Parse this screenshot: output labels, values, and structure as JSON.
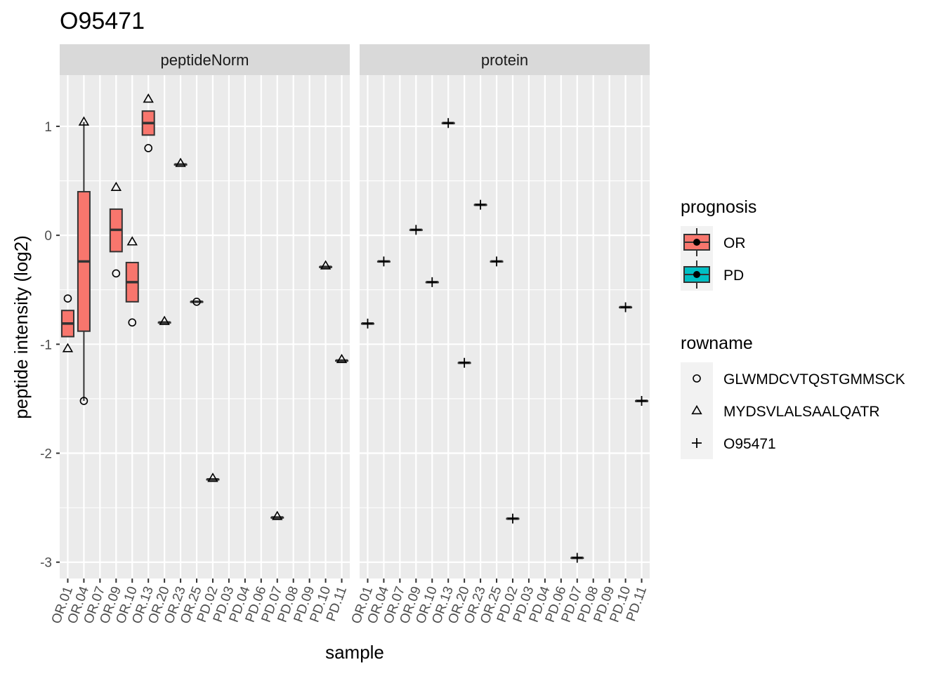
{
  "chart_data": {
    "type": "box",
    "title": "O95471",
    "xlabel": "sample",
    "ylabel": "peptide intensity (log2)",
    "ylim": [
      -3.15,
      1.47
    ],
    "yticks": [
      -3,
      -2,
      -1,
      0,
      1
    ],
    "grid": true,
    "legend_position": "right",
    "categories": [
      "OR.01",
      "OR.04",
      "OR.07",
      "OR.09",
      "OR.10",
      "OR.13",
      "OR.20",
      "OR.23",
      "OR.25",
      "PD.02",
      "PD.03",
      "PD.04",
      "PD.06",
      "PD.07",
      "PD.08",
      "PD.09",
      "PD.10",
      "PD.11"
    ],
    "facets": [
      {
        "label": "peptideNorm",
        "boxes": [
          {
            "sample": "OR.01",
            "prognosis": "OR",
            "q1": -0.93,
            "median": -0.81,
            "q3": -0.69,
            "whisker_low": -0.93,
            "whisker_high": -0.69
          },
          {
            "sample": "OR.04",
            "prognosis": "OR",
            "q1": -0.88,
            "median": -0.24,
            "q3": 0.4,
            "whisker_low": -1.52,
            "whisker_high": 1.04
          },
          {
            "sample": "OR.09",
            "prognosis": "OR",
            "q1": -0.15,
            "median": 0.05,
            "q3": 0.24,
            "whisker_low": -0.15,
            "whisker_high": 0.24
          },
          {
            "sample": "OR.10",
            "prognosis": "OR",
            "q1": -0.61,
            "median": -0.43,
            "q3": -0.25,
            "whisker_low": -0.61,
            "whisker_high": -0.25
          },
          {
            "sample": "OR.13",
            "prognosis": "OR",
            "q1": 0.92,
            "median": 1.03,
            "q3": 1.14,
            "whisker_low": 0.92,
            "whisker_high": 1.14
          },
          {
            "sample": "OR.20",
            "prognosis": "OR",
            "q1": -0.8,
            "median": -0.8,
            "q3": -0.8,
            "whisker_low": -0.8,
            "whisker_high": -0.8
          },
          {
            "sample": "OR.23",
            "prognosis": "OR",
            "q1": 0.65,
            "median": 0.65,
            "q3": 0.65,
            "whisker_low": 0.65,
            "whisker_high": 0.65
          },
          {
            "sample": "OR.25",
            "prognosis": "OR",
            "q1": -0.61,
            "median": -0.61,
            "q3": -0.61,
            "whisker_low": -0.61,
            "whisker_high": -0.61
          },
          {
            "sample": "PD.02",
            "prognosis": "OR",
            "q1": -2.24,
            "median": -2.24,
            "q3": -2.24,
            "whisker_low": -2.24,
            "whisker_high": -2.24
          },
          {
            "sample": "PD.07",
            "prognosis": "OR",
            "q1": -2.59,
            "median": -2.59,
            "q3": -2.59,
            "whisker_low": -2.59,
            "whisker_high": -2.59
          },
          {
            "sample": "PD.10",
            "prognosis": "OR",
            "q1": -0.29,
            "median": -0.29,
            "q3": -0.29,
            "whisker_low": -0.29,
            "whisker_high": -0.29
          },
          {
            "sample": "PD.11",
            "prognosis": "OR",
            "q1": -1.15,
            "median": -1.15,
            "q3": -1.15,
            "whisker_low": -1.15,
            "whisker_high": -1.15
          }
        ],
        "points": [
          {
            "sample": "OR.01",
            "rowname": "GLWMDCVTQSTGMMSCK",
            "y": -0.58
          },
          {
            "sample": "OR.01",
            "rowname": "MYDSVLALSAALQATR",
            "y": -1.04
          },
          {
            "sample": "OR.04",
            "rowname": "GLWMDCVTQSTGMMSCK",
            "y": -1.52
          },
          {
            "sample": "OR.04",
            "rowname": "MYDSVLALSAALQATR",
            "y": 1.04
          },
          {
            "sample": "OR.09",
            "rowname": "GLWMDCVTQSTGMMSCK",
            "y": -0.35
          },
          {
            "sample": "OR.09",
            "rowname": "MYDSVLALSAALQATR",
            "y": 0.44
          },
          {
            "sample": "OR.10",
            "rowname": "GLWMDCVTQSTGMMSCK",
            "y": -0.8
          },
          {
            "sample": "OR.10",
            "rowname": "MYDSVLALSAALQATR",
            "y": -0.06
          },
          {
            "sample": "OR.13",
            "rowname": "GLWMDCVTQSTGMMSCK",
            "y": 0.8
          },
          {
            "sample": "OR.13",
            "rowname": "MYDSVLALSAALQATR",
            "y": 1.25
          },
          {
            "sample": "OR.20",
            "rowname": "MYDSVLALSAALQATR",
            "y": -0.79
          },
          {
            "sample": "OR.23",
            "rowname": "MYDSVLALSAALQATR",
            "y": 0.66
          },
          {
            "sample": "OR.25",
            "rowname": "GLWMDCVTQSTGMMSCK",
            "y": -0.61
          },
          {
            "sample": "PD.02",
            "rowname": "MYDSVLALSAALQATR",
            "y": -2.23
          },
          {
            "sample": "PD.07",
            "rowname": "MYDSVLALSAALQATR",
            "y": -2.58
          },
          {
            "sample": "PD.10",
            "rowname": "MYDSVLALSAALQATR",
            "y": -0.28
          },
          {
            "sample": "PD.11",
            "rowname": "MYDSVLALSAALQATR",
            "y": -1.14
          }
        ]
      },
      {
        "label": "protein",
        "boxes": [
          {
            "sample": "OR.01",
            "prognosis": "OR",
            "q1": -0.81,
            "median": -0.81,
            "q3": -0.81,
            "whisker_low": -0.81,
            "whisker_high": -0.81
          },
          {
            "sample": "OR.04",
            "prognosis": "OR",
            "q1": -0.24,
            "median": -0.24,
            "q3": -0.24,
            "whisker_low": -0.24,
            "whisker_high": -0.24
          },
          {
            "sample": "OR.09",
            "prognosis": "OR",
            "q1": 0.05,
            "median": 0.05,
            "q3": 0.05,
            "whisker_low": 0.05,
            "whisker_high": 0.05
          },
          {
            "sample": "OR.10",
            "prognosis": "OR",
            "q1": -0.43,
            "median": -0.43,
            "q3": -0.43,
            "whisker_low": -0.43,
            "whisker_high": -0.43
          },
          {
            "sample": "OR.13",
            "prognosis": "OR",
            "q1": 1.03,
            "median": 1.03,
            "q3": 1.03,
            "whisker_low": 1.03,
            "whisker_high": 1.03
          },
          {
            "sample": "OR.20",
            "prognosis": "OR",
            "q1": -1.17,
            "median": -1.17,
            "q3": -1.17,
            "whisker_low": -1.17,
            "whisker_high": -1.17
          },
          {
            "sample": "OR.23",
            "prognosis": "OR",
            "q1": 0.28,
            "median": 0.28,
            "q3": 0.28,
            "whisker_low": 0.28,
            "whisker_high": 0.28
          },
          {
            "sample": "OR.25",
            "prognosis": "OR",
            "q1": -0.24,
            "median": -0.24,
            "q3": -0.24,
            "whisker_low": -0.24,
            "whisker_high": -0.24
          },
          {
            "sample": "PD.02",
            "prognosis": "OR",
            "q1": -2.6,
            "median": -2.6,
            "q3": -2.6,
            "whisker_low": -2.6,
            "whisker_high": -2.6
          },
          {
            "sample": "PD.07",
            "prognosis": "OR",
            "q1": -2.96,
            "median": -2.96,
            "q3": -2.96,
            "whisker_low": -2.96,
            "whisker_high": -2.96
          },
          {
            "sample": "PD.10",
            "prognosis": "OR",
            "q1": -0.66,
            "median": -0.66,
            "q3": -0.66,
            "whisker_low": -0.66,
            "whisker_high": -0.66
          },
          {
            "sample": "PD.11",
            "prognosis": "OR",
            "q1": -1.52,
            "median": -1.52,
            "q3": -1.52,
            "whisker_low": -1.52,
            "whisker_high": -1.52
          }
        ],
        "points": [
          {
            "sample": "OR.01",
            "rowname": "O95471",
            "y": -0.81
          },
          {
            "sample": "OR.04",
            "rowname": "O95471",
            "y": -0.24
          },
          {
            "sample": "OR.09",
            "rowname": "O95471",
            "y": 0.05
          },
          {
            "sample": "OR.10",
            "rowname": "O95471",
            "y": -0.43
          },
          {
            "sample": "OR.13",
            "rowname": "O95471",
            "y": 1.03
          },
          {
            "sample": "OR.20",
            "rowname": "O95471",
            "y": -1.17
          },
          {
            "sample": "OR.23",
            "rowname": "O95471",
            "y": 0.28
          },
          {
            "sample": "OR.25",
            "rowname": "O95471",
            "y": -0.24
          },
          {
            "sample": "PD.02",
            "rowname": "O95471",
            "y": -2.6
          },
          {
            "sample": "PD.07",
            "rowname": "O95471",
            "y": -2.96
          },
          {
            "sample": "PD.10",
            "rowname": "O95471",
            "y": -0.66
          },
          {
            "sample": "PD.11",
            "rowname": "O95471",
            "y": -1.52
          }
        ]
      }
    ],
    "legends": [
      {
        "title": "prognosis",
        "entries": [
          {
            "label": "OR",
            "color": "#F8766D"
          },
          {
            "label": "PD",
            "color": "#00BFC4"
          }
        ]
      },
      {
        "title": "rowname",
        "entries": [
          {
            "label": "GLWMDCVTQSTGMMSCK",
            "shape": "circle"
          },
          {
            "label": "MYDSVLALSAALQATR",
            "shape": "triangle"
          },
          {
            "label": "O95471",
            "shape": "plus"
          }
        ]
      }
    ]
  }
}
